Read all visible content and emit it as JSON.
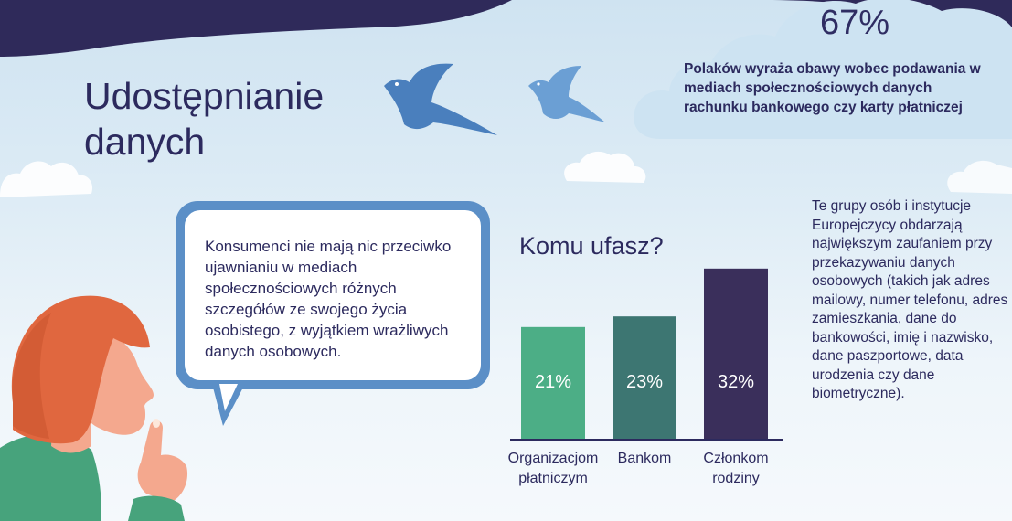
{
  "title": "Udostępnianie\ndanych",
  "stat": {
    "percent": "67%",
    "text": "Polaków wyraża obawy wobec podawania w mediach społecznościowych danych rachunku bankowego czy karty płatniczej"
  },
  "bubble_text": "Konsumenci nie mają nic przeciwko ujawnianiu w mediach społecznościowych różnych szczegółów ze swojego życia osobistego, z wyjątkiem wrażliwych danych osobowych.",
  "right_text": "Te grupy osób i instytucje Europejczycy obdarzają największym zaufaniem przy przekazywaniu danych osobowych (takich jak adres mailowy, numer telefonu, adres zamieszkania, dane do bankowości, imię i nazwisko, dane paszportowe, data urodzenia czy dane biometryczne).",
  "colors": {
    "navy": "#2c2a5e",
    "bar1": "#4cae86",
    "bar2": "#3d7672",
    "bar3": "#3a2f5b",
    "bubble_border": "#5b8fc7",
    "bird": "#4a7fbd",
    "hair": "#e0673f",
    "skin": "#f4a88e",
    "shirt": "#47a37c"
  },
  "icons": [
    "bird-icon",
    "cloud-icon",
    "person-illustration"
  ],
  "chart_data": {
    "type": "bar",
    "title": "Komu ufasz?",
    "categories": [
      "Organizacjom płatniczym",
      "Bankom",
      "Członkom rodziny"
    ],
    "category_lines": [
      [
        "Organizacjom",
        "płatniczym"
      ],
      [
        "Bankom"
      ],
      [
        "Członkom",
        "rodziny"
      ]
    ],
    "values": [
      21,
      23,
      32
    ],
    "value_labels": [
      "21%",
      "23%",
      "32%"
    ],
    "bar_colors": [
      "#4cae86",
      "#3d7672",
      "#3a2f5b"
    ],
    "ylim": [
      0,
      33
    ],
    "xlabel": "",
    "ylabel": "",
    "grid": false
  }
}
